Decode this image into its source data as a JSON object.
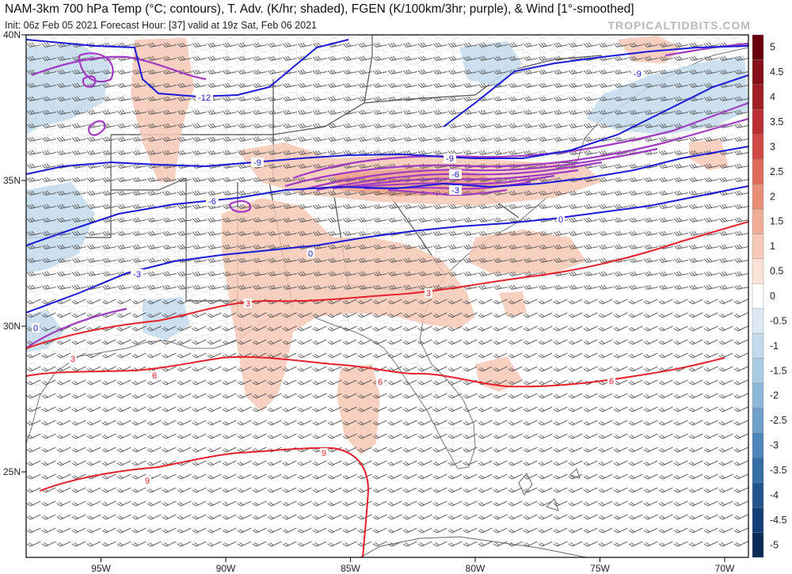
{
  "header": {
    "title": "NAM-3km 700 hPa Temp (°C; contours), T. Adv. (K/hr; shaded), FGEN (K/100km/3hr; purple), & Wind [1°-smoothed]",
    "subtitle": "Init: 06z Feb 05 2021   Forecast Hour: [37]   valid at 19z Sat, Feb 06 2021",
    "brand": "TROPICALTIDBITS.COM"
  },
  "axes": {
    "lon_labels": [
      "95W",
      "90W",
      "85W",
      "80W",
      "75W",
      "70W"
    ],
    "lon_values": [
      -95,
      -90,
      -85,
      -80,
      -75,
      -70
    ],
    "lat_labels": [
      "40N",
      "35N",
      "30N",
      "25N"
    ],
    "lat_values": [
      40,
      35,
      30,
      25
    ]
  },
  "colorbar": {
    "labels": [
      "5",
      "4.5",
      "4",
      "3.5",
      "3",
      "2.5",
      "2",
      "1.5",
      "1",
      "0.5",
      "0",
      "-0.5",
      "-1",
      "-1.5",
      "-2",
      "-2.5",
      "-3",
      "-3.5",
      "-4",
      "-4.5",
      "-5"
    ],
    "colors": [
      "#67000d",
      "#86101a",
      "#a11d26",
      "#bb2e33",
      "#cf4a44",
      "#de6b5a",
      "#e88d76",
      "#f0ad96",
      "#f6c8b6",
      "#fae2d8",
      "#ffffff",
      "#dce9f3",
      "#c3daec",
      "#a9cae3",
      "#8db7d8",
      "#6ea0ca",
      "#4f86b9",
      "#366da5",
      "#22558e",
      "#133f76",
      "#0b2b57"
    ]
  },
  "temp_contours": {
    "cold_color": "#1a1adb",
    "warm_color": "#e8202a",
    "labels": [
      "-12",
      "-9",
      "-9",
      "-9",
      "-6",
      "-6",
      "-3",
      "-3",
      "0",
      "0",
      "0",
      "3",
      "3",
      "3",
      "6",
      "6",
      "6",
      "9",
      "9"
    ]
  },
  "fgen": {
    "color": "#a23bc4"
  },
  "map_colors": {
    "land": "#ffffff",
    "ocean": "#ffffff",
    "borders": "#555555",
    "counties": "#b9b9b9"
  }
}
